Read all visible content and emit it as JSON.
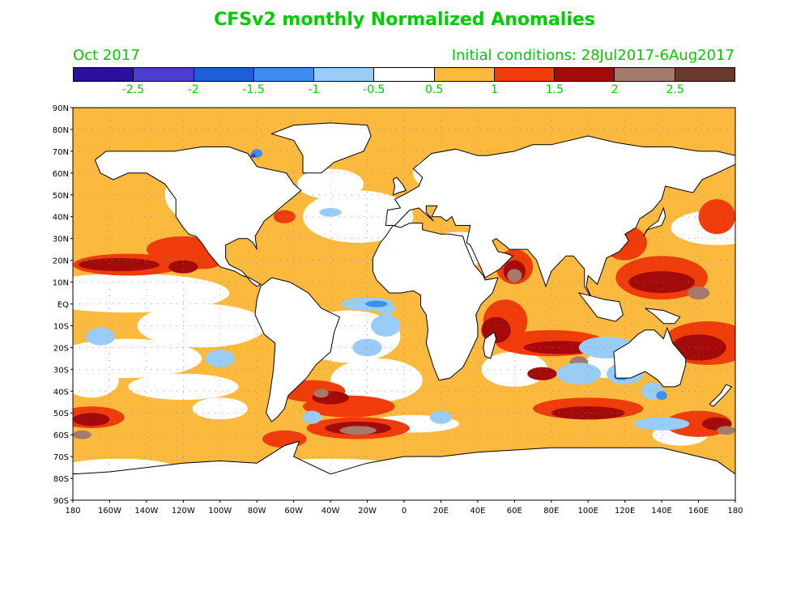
{
  "title": "CFSv2 monthly Normalized Anomalies",
  "month": "Oct 2017",
  "initial_conditions": "Initial conditions: 28Jul2017-6Aug2017",
  "colors": {
    "title_text": "#00cc00",
    "land_outline": "#000000",
    "ocean_neutral": "#ffffff"
  },
  "colorbar": {
    "colors": [
      "#2a0fa0",
      "#4a3dd0",
      "#1f5fd6",
      "#3d8ef0",
      "#99ccf7",
      "#ffffff",
      "#fbb93d",
      "#f03c0a",
      "#a30a0a",
      "#a67a6a",
      "#6b3a2e"
    ],
    "labels": [
      "-2.5",
      "-2",
      "-1.5",
      "-1",
      "-0.5",
      "0.5",
      "1",
      "1.5",
      "2",
      "2.5"
    ]
  },
  "axes": {
    "lat_labels": [
      "90N",
      "80N",
      "70N",
      "60N",
      "50N",
      "40N",
      "30N",
      "20N",
      "10N",
      "EQ",
      "10S",
      "20S",
      "30S",
      "40S",
      "50S",
      "60S",
      "70S",
      "80S",
      "90S"
    ],
    "lon_labels": [
      "180",
      "160W",
      "140W",
      "120W",
      "100W",
      "80W",
      "60W",
      "40W",
      "20W",
      "0",
      "20E",
      "40E",
      "60E",
      "80E",
      "100E",
      "120E",
      "140E",
      "160E",
      "180"
    ]
  }
}
